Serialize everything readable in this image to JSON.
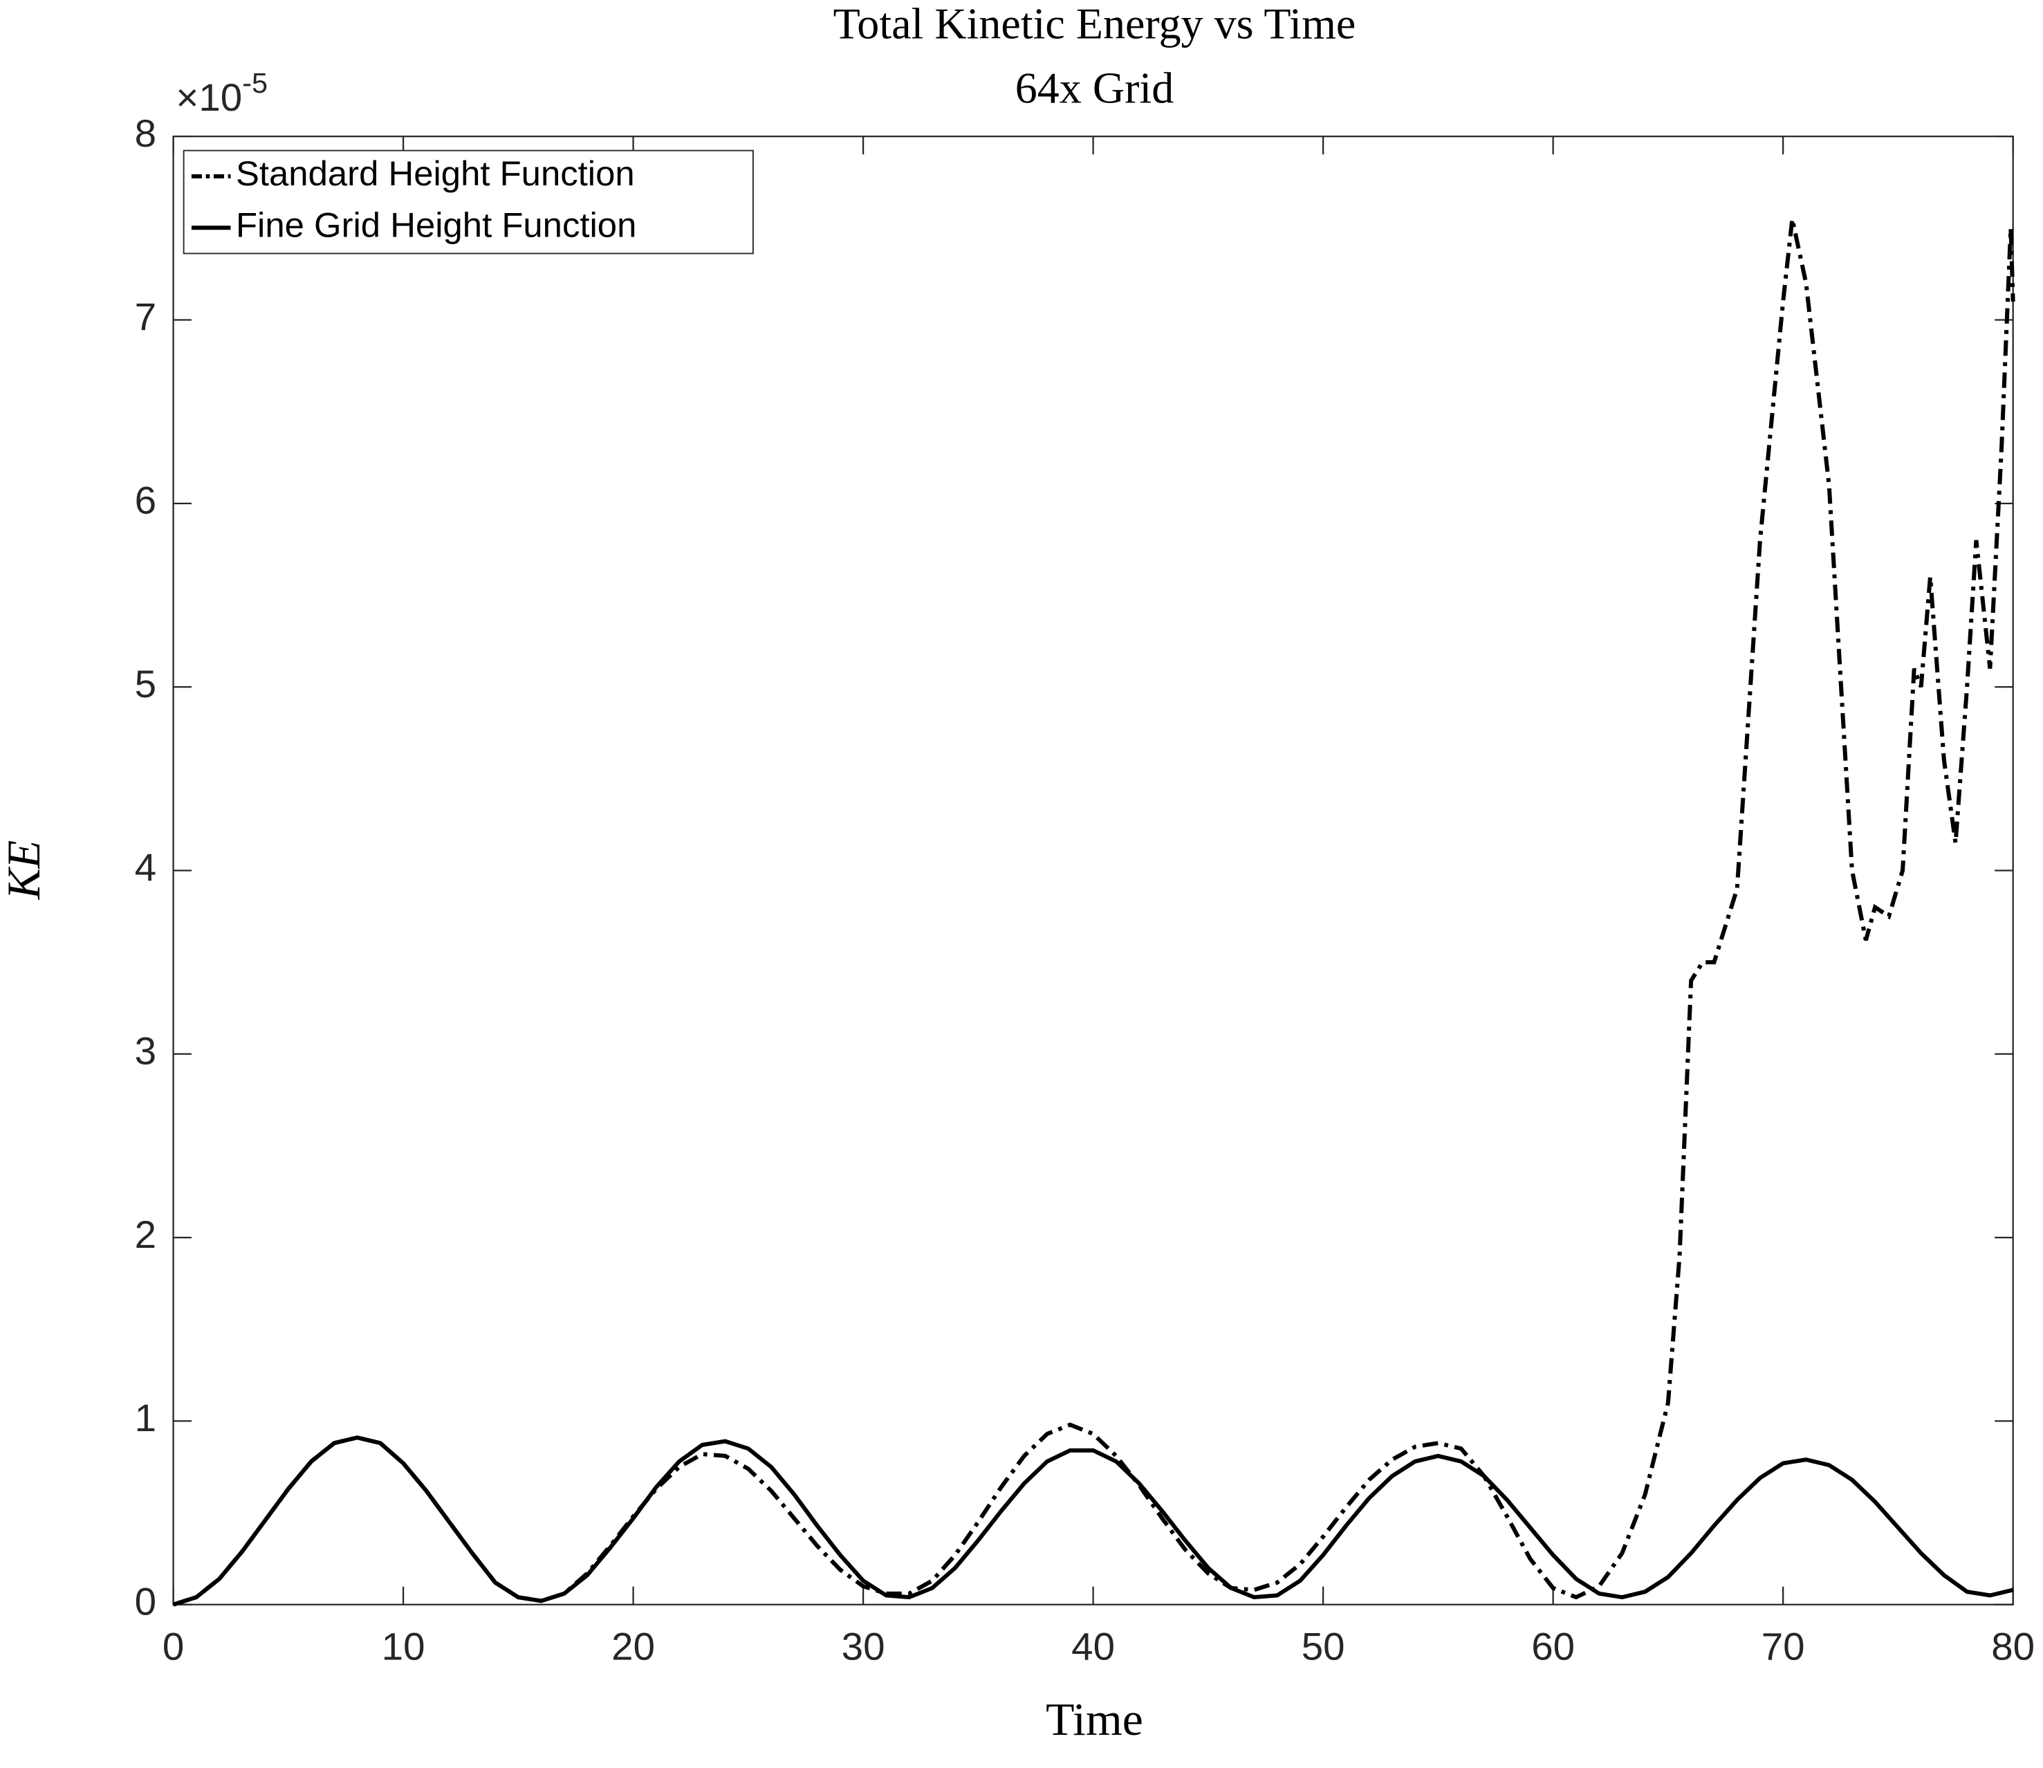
{
  "chart_data": {
    "type": "line",
    "title": "Total Kinetic Energy vs Time",
    "subtitle": "64x Grid",
    "x_label": "Time",
    "y_label": "KE",
    "y_multiplier": "×10",
    "y_multiplier_exponent": "-5",
    "xlim": [
      0,
      80
    ],
    "xticks": [
      0,
      10,
      20,
      30,
      40,
      50,
      60,
      70,
      80
    ],
    "ylim": [
      0,
      8
    ],
    "yticks": [
      0,
      1,
      2,
      3,
      4,
      5,
      6,
      7,
      8
    ],
    "grid": false,
    "legend": "upper left",
    "series": [
      {
        "name": "Standard Height Function",
        "color": "#000000",
        "line_style": "dashdot",
        "x": [
          0,
          1,
          2,
          3,
          4,
          5,
          6,
          7,
          8,
          9,
          10,
          11,
          12,
          13,
          14,
          15,
          16,
          17,
          18,
          19,
          20,
          21,
          22,
          23,
          24,
          25,
          26,
          27,
          28,
          29,
          30,
          31,
          32,
          33,
          34,
          35,
          36,
          37,
          38,
          39,
          40,
          41,
          42,
          43,
          44,
          45,
          46,
          47,
          48,
          49,
          50,
          51,
          52,
          53,
          54,
          55,
          56,
          57,
          58,
          59,
          60,
          61,
          62,
          63,
          64,
          65,
          65.5,
          66,
          66.5,
          67,
          68,
          69,
          70,
          70.4,
          71,
          72,
          73,
          73.6,
          74,
          74.6,
          75.2,
          75.7,
          76,
          76.4,
          77,
          77.5,
          78,
          78.4,
          79,
          79.5,
          79.9,
          80
        ],
        "values": [
          0.0,
          0.04,
          0.14,
          0.29,
          0.46,
          0.63,
          0.78,
          0.88,
          0.91,
          0.88,
          0.77,
          0.62,
          0.45,
          0.28,
          0.12,
          0.04,
          0.02,
          0.06,
          0.17,
          0.32,
          0.48,
          0.63,
          0.75,
          0.82,
          0.81,
          0.74,
          0.62,
          0.47,
          0.32,
          0.19,
          0.1,
          0.06,
          0.06,
          0.13,
          0.27,
          0.45,
          0.64,
          0.81,
          0.93,
          0.98,
          0.93,
          0.81,
          0.65,
          0.47,
          0.3,
          0.17,
          0.09,
          0.08,
          0.12,
          0.22,
          0.37,
          0.53,
          0.68,
          0.79,
          0.86,
          0.88,
          0.85,
          0.7,
          0.48,
          0.25,
          0.09,
          0.04,
          0.1,
          0.28,
          0.6,
          1.1,
          1.9,
          3.4,
          3.5,
          3.5,
          3.9,
          5.8,
          7.1,
          7.55,
          7.2,
          6.1,
          4.0,
          3.62,
          3.8,
          3.75,
          4.0,
          5.1,
          5.0,
          5.6,
          4.6,
          4.15,
          5.0,
          5.8,
          5.1,
          6.3,
          7.5,
          7.1
        ]
      },
      {
        "name": "Fine Grid Height Function",
        "color": "#000000",
        "line_style": "solid",
        "x": [
          0,
          1,
          2,
          3,
          4,
          5,
          6,
          7,
          8,
          9,
          10,
          11,
          12,
          13,
          14,
          15,
          16,
          17,
          18,
          19,
          20,
          21,
          22,
          23,
          24,
          25,
          26,
          27,
          28,
          29,
          30,
          31,
          32,
          33,
          34,
          35,
          36,
          37,
          38,
          39,
          40,
          41,
          42,
          43,
          44,
          45,
          46,
          47,
          48,
          49,
          50,
          51,
          52,
          53,
          54,
          55,
          56,
          57,
          58,
          59,
          60,
          61,
          62,
          63,
          64,
          65,
          66,
          67,
          68,
          69,
          70,
          71,
          72,
          73,
          74,
          75,
          76,
          77,
          78,
          79,
          80
        ],
        "values": [
          0.0,
          0.04,
          0.14,
          0.29,
          0.46,
          0.63,
          0.78,
          0.88,
          0.91,
          0.88,
          0.77,
          0.62,
          0.45,
          0.28,
          0.12,
          0.04,
          0.02,
          0.06,
          0.16,
          0.31,
          0.47,
          0.64,
          0.78,
          0.87,
          0.89,
          0.85,
          0.75,
          0.6,
          0.43,
          0.27,
          0.13,
          0.05,
          0.04,
          0.09,
          0.2,
          0.35,
          0.51,
          0.66,
          0.78,
          0.84,
          0.84,
          0.78,
          0.66,
          0.51,
          0.35,
          0.2,
          0.09,
          0.04,
          0.05,
          0.13,
          0.27,
          0.43,
          0.58,
          0.7,
          0.78,
          0.81,
          0.78,
          0.7,
          0.57,
          0.42,
          0.27,
          0.14,
          0.06,
          0.04,
          0.07,
          0.15,
          0.28,
          0.43,
          0.57,
          0.69,
          0.77,
          0.79,
          0.76,
          0.68,
          0.56,
          0.42,
          0.28,
          0.16,
          0.07,
          0.05,
          0.08
        ]
      }
    ]
  }
}
